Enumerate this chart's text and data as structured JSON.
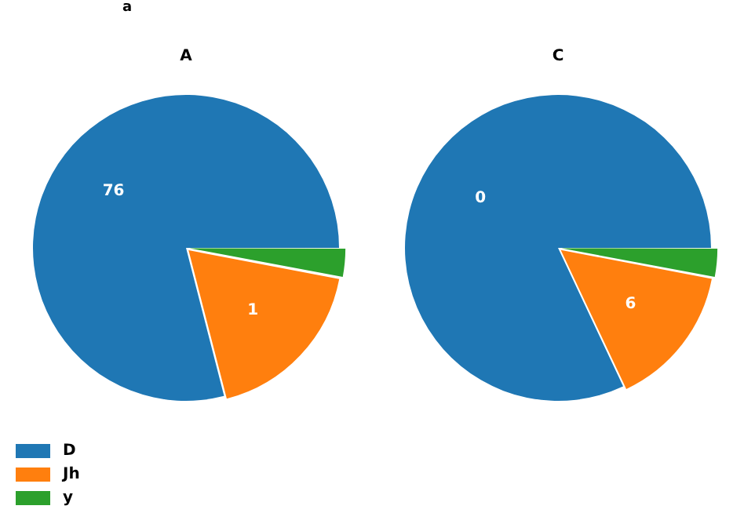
{
  "chart_data": [
    {
      "type": "pie",
      "title": "A",
      "subtitle": "a",
      "annotations": [
        "76",
        "1"
      ],
      "categories": [
        "D",
        "Jh",
        "y"
      ],
      "values": [
        79,
        18,
        3
      ],
      "colors": [
        "#1f77b4",
        "#ff7f0e",
        "#2ca02c"
      ],
      "legend": "bottom left"
    },
    {
      "type": "pie",
      "title": "C",
      "annotations": [
        "0",
        "6"
      ],
      "categories": [
        null,
        null,
        null
      ],
      "values": [
        82,
        15,
        3
      ],
      "colors": [
        "#1f77b4",
        "#ff7f0e",
        "#2ca02c"
      ]
    }
  ]
}
